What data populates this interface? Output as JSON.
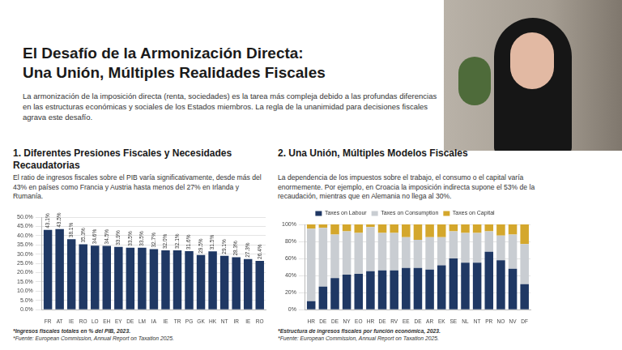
{
  "title": [
    "El Desafío de la Armonización Directa:",
    "Una Unión, Múltiples Realidades Fiscales"
  ],
  "intro": "La armonización de la imposición directa (renta, sociedades) es la tarea más compleja debido a las profundas diferencias en las estructuras económicas y sociales de los Estados miembros. La regla de la unanimidad para decisiones fiscales agrava este desafío.",
  "chart_data": [
    {
      "type": "bar",
      "title": "1. Diferentes Presiones Fiscales y Necesidades Recaudatorias",
      "subtitle": "El ratio de ingresos fiscales sobre el PIB varía significativamente, desde más del 43% en países como Francia y Austria hasta menos del 27% en Irlanda y Rumanía.",
      "annotations": [
        "*Ingresos fiscales totales en % del PIB, 2023.",
        "*Fuente: European Commission, Annual Report on Taxation 2025."
      ],
      "categories": [
        "FR",
        "AT",
        "IE",
        "RO",
        "LO",
        "EH",
        "EY",
        "DE",
        "LM",
        "IA",
        "IE",
        "TR",
        "PG",
        "GK",
        "HK",
        "NT",
        "IR",
        "IE",
        "RO"
      ],
      "values": [
        43.1,
        43.5,
        38.1,
        35.3,
        34.6,
        34.5,
        33.9,
        33.5,
        33.5,
        32.7,
        32.0,
        32.1,
        31.6,
        29.5,
        31.5,
        29.1,
        28.3,
        27.3,
        26.4
      ],
      "value_labels": [
        "43.1%",
        "43.5%",
        "38.1%",
        "35.3%",
        "34.6%",
        "34.5%",
        "33.9%",
        "33.5%",
        "33.5%",
        "32.7%",
        "32.0%",
        "32.1%",
        "31.6%",
        "29.5%",
        "31.5%",
        "29.1%",
        "28.3%",
        "27.3%",
        "26.4%"
      ],
      "data_labels": true,
      "color": "#1f3864",
      "ylim": [
        0,
        50
      ],
      "yticks": [
        {
          "value": 0,
          "label": "0.0%"
        },
        {
          "value": 5,
          "label": "5.0%"
        },
        {
          "value": 10,
          "label": "10.0%"
        },
        {
          "value": 15,
          "label": "15.0%"
        },
        {
          "value": 20,
          "label": "20.0%"
        },
        {
          "value": 25,
          "label": "25.0%"
        },
        {
          "value": 30,
          "label": "30.0%"
        },
        {
          "value": 35,
          "label": "35.0%"
        },
        {
          "value": 40,
          "label": "40.0%"
        },
        {
          "value": 45,
          "label": "45.0%"
        },
        {
          "value": 50,
          "label": "50.0%"
        }
      ],
      "grid": true
    },
    {
      "type": "bar",
      "title": "2. Una Unión, Múltiples Modelos Fiscales",
      "subtitle": "La dependencia de los impuestos sobre el trabajo, el consumo o el capital varía enormemente. Por ejemplo, en Croacia la imposición indirecta supone el 53% de la recaudación, mientras que en Alemania no llega al 30%.",
      "annotations": [
        "*Estructura de ingresos fiscales por función económica, 2023.",
        "*Fuente: European Commission, Annual Report on Taxation 2025."
      ],
      "categories": [
        "HR",
        "DE",
        "DE",
        "NY",
        "EO",
        "HR",
        "DE",
        "RV",
        "EE",
        "DE",
        "AR",
        "EK",
        "SE",
        "NL",
        "NT",
        "PR",
        "NO",
        "NV",
        "DF"
      ],
      "series": [
        {
          "name": "Taxes on Labour",
          "color": "#1f3864",
          "values": [
            10,
            27,
            37,
            41,
            42,
            45,
            46,
            46,
            49,
            49,
            47,
            52,
            60,
            55,
            55,
            68,
            58,
            48,
            30
          ]
        },
        {
          "name": "Taxes on Consumption",
          "color": "#c9cdd2",
          "values": [
            85,
            69,
            51,
            51,
            48,
            52,
            44,
            44,
            36,
            33,
            38,
            33,
            32,
            35,
            35,
            24,
            29,
            40,
            47
          ]
        },
        {
          "name": "Taxes on Capital",
          "color": "#d4a72c",
          "values": [
            5,
            4,
            12,
            8,
            10,
            3,
            10,
            10,
            15,
            18,
            15,
            15,
            8,
            10,
            10,
            8,
            13,
            12,
            23
          ]
        }
      ],
      "stacked": true,
      "legend": "top",
      "ylim": [
        0,
        100
      ],
      "yticks": [
        {
          "value": 0,
          "label": "0%"
        },
        {
          "value": 20,
          "label": "20%"
        },
        {
          "value": 40,
          "label": "40%"
        },
        {
          "value": 60,
          "label": "60%"
        },
        {
          "value": 80,
          "label": "80%"
        },
        {
          "value": 100,
          "label": "100%"
        }
      ],
      "grid": true
    }
  ]
}
